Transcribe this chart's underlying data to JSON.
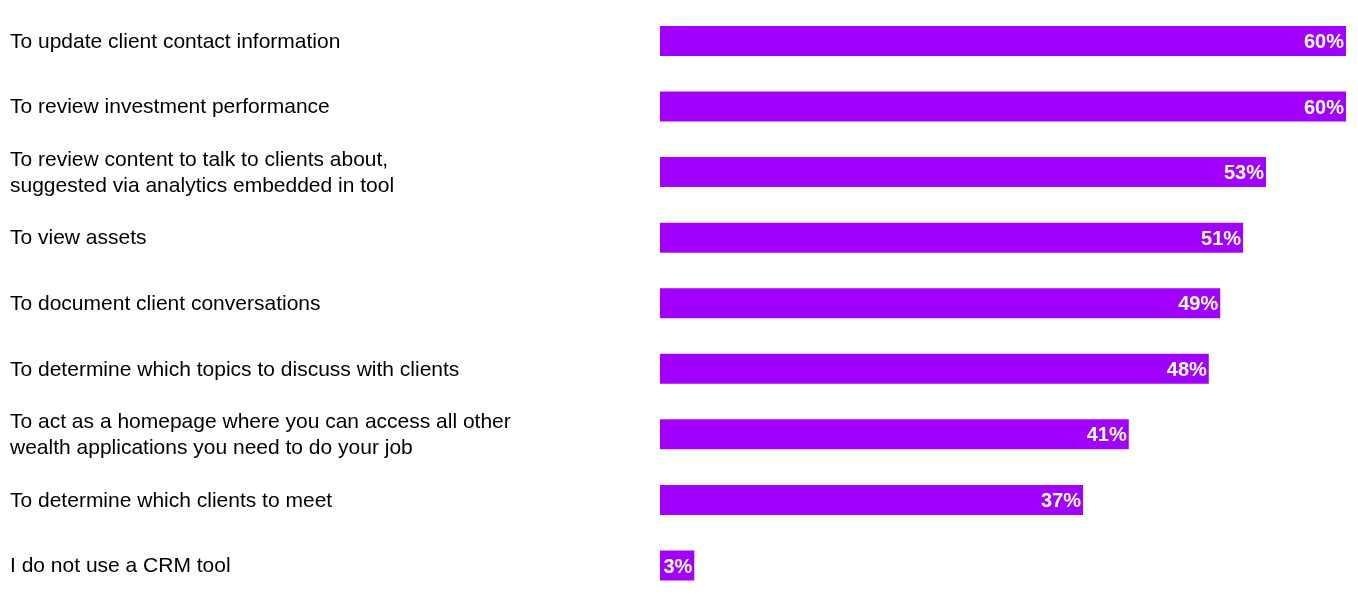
{
  "chart_data": {
    "type": "bar",
    "orientation": "horizontal",
    "tick_labels": "y",
    "grid": false,
    "legend": false,
    "categories": [
      "To update client contact information",
      "To review investment performance",
      "To review content to talk to clients about, suggested via analytics embedded in tool",
      "To view assets",
      "To document client conversations",
      "To determine which topics to discuss with clients",
      "To act as a homepage where you can access all other wealth applications you need to do your job",
      "To determine which clients to meet",
      "I do not use a CRM tool"
    ],
    "values": [
      60,
      60,
      53,
      51,
      49,
      48,
      41,
      37,
      3
    ],
    "value_labels": [
      "60%",
      "60%",
      "53%",
      "51%",
      "49%",
      "48%",
      "41%",
      "37%",
      "3%"
    ],
    "color": "#a100ff"
  }
}
